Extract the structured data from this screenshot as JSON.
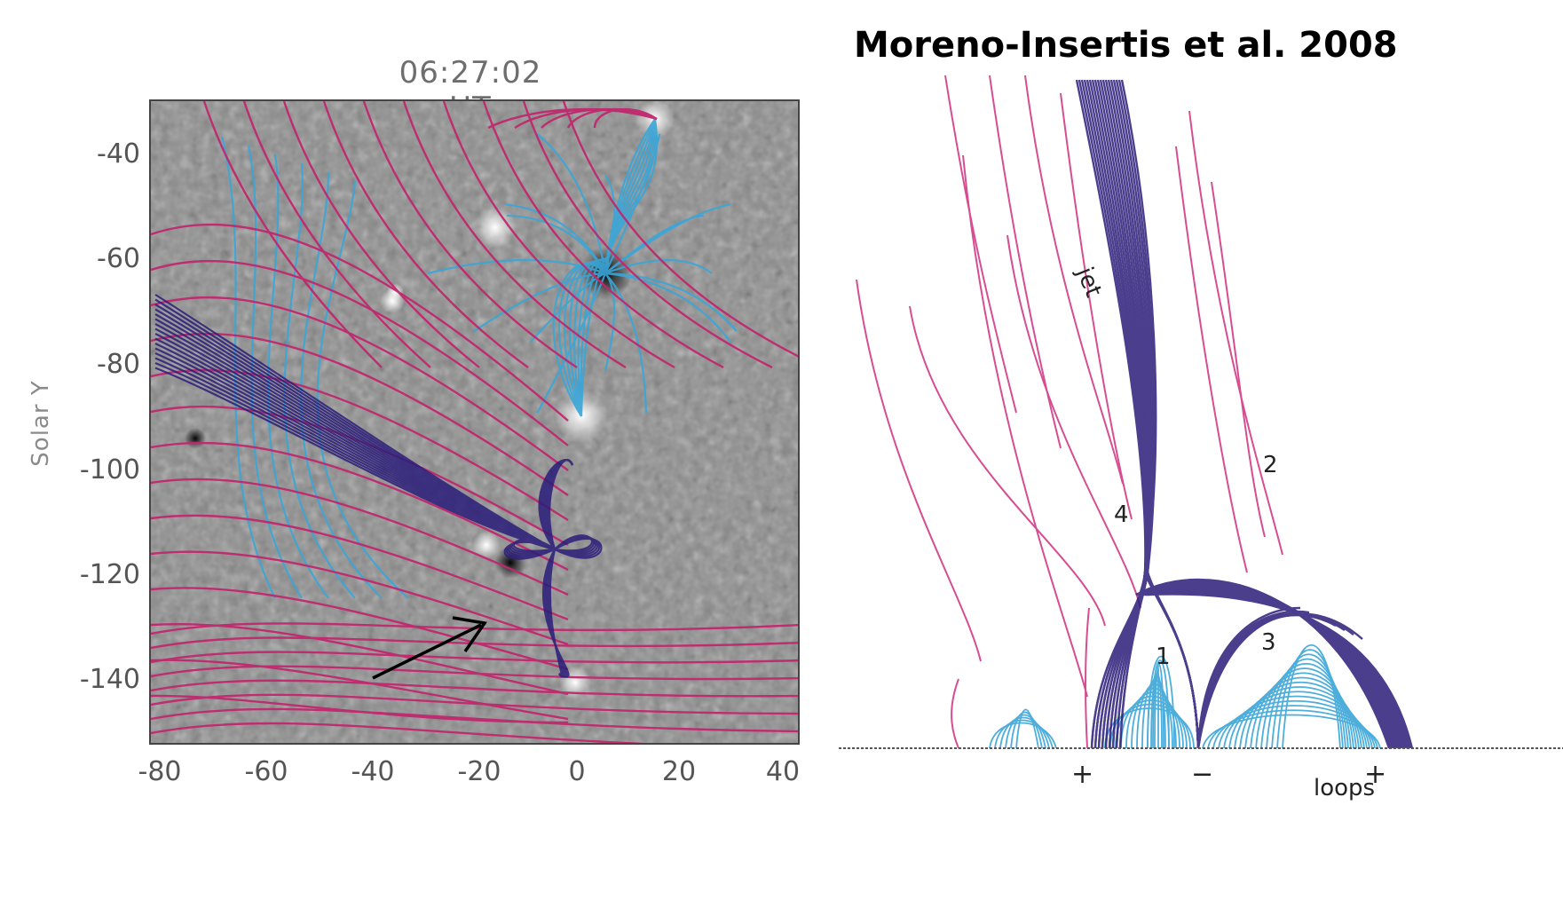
{
  "left_panel": {
    "title": "06:27:02 UT",
    "ylabel": "Solar Y",
    "y_ticks": [
      "-40",
      "-60",
      "-80",
      "-100",
      "-120",
      "-140"
    ],
    "x_ticks": [
      "-80",
      "-60",
      "-40",
      "-20",
      "0",
      "20",
      "40"
    ],
    "field_line_colors": {
      "open": "#c0286e",
      "closed": "#3aa6d8",
      "jet": "#2b1d7a"
    },
    "arrow_color": "#000000"
  },
  "right_panel": {
    "title": "Moreno-Insertis et al. 2008",
    "region_labels": [
      "jet",
      "1",
      "2",
      "3",
      "4"
    ],
    "polarity_labels": [
      "+",
      "−",
      "+"
    ],
    "base_label": "loops",
    "field_line_colors": {
      "open": "#d23a86",
      "closed": "#3aa6d8",
      "jet": "#2b1d7a"
    }
  }
}
